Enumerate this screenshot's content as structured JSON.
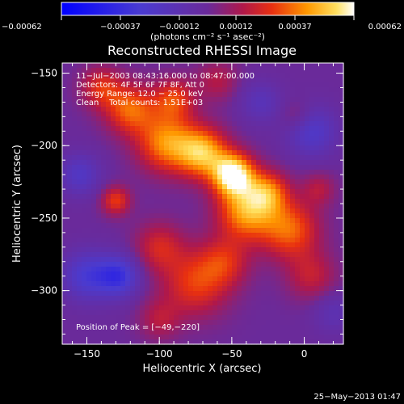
{
  "chart_data": {
    "type": "heatmap",
    "title": "Reconstructed RHESSI Image",
    "xlabel": "Heliocentric X (arcsec)",
    "ylabel": "Heliocentric Y (arcsec)",
    "xlim": [
      -167,
      27
    ],
    "ylim": [
      -337,
      -143
    ],
    "x_ticks": [
      -150,
      -100,
      -50,
      0
    ],
    "x_tick_labels": [
      "−150",
      "−100",
      "−50",
      "0"
    ],
    "y_ticks": [
      -150,
      -200,
      -250,
      -300
    ],
    "y_tick_labels": [
      "−150",
      "−200",
      "−250",
      "−300"
    ],
    "colorbar": {
      "range": [
        -0.00062,
        0.00062
      ],
      "tick_values": [
        -0.00062,
        -0.00037,
        -0.00012,
        0.00012,
        0.00037,
        0.00062
      ],
      "tick_labels": [
        "−0.00062",
        "−0.00037",
        "−0.00012",
        "0.00012",
        "0.00037",
        "0.00062"
      ],
      "units_label": "(photons cm⁻² s⁻¹ asec⁻²)"
    },
    "annotations": [
      "11−Jul−2003 08:43:16.000 to 08:47:00.000",
      "Detectors: 4F 5F 6F 7F 8F, Att 0",
      "Energy Range: 12.0 − 25.0 keV",
      "Clean    Total counts: 1.51E+03"
    ],
    "peak_label": "Position of Peak = [−49,−220]",
    "peak_position": [
      -49,
      -220
    ],
    "footer_date": "25−May−2013 01:47",
    "blobs": [
      {
        "x": -49,
        "y": -220,
        "amp": 1.0,
        "sigma": 10
      },
      {
        "x": -70,
        "y": -205,
        "amp": 0.75,
        "sigma": 12
      },
      {
        "x": -95,
        "y": -198,
        "amp": 0.65,
        "sigma": 14
      },
      {
        "x": -120,
        "y": -175,
        "amp": 0.55,
        "sigma": 12
      },
      {
        "x": -40,
        "y": -245,
        "amp": 0.7,
        "sigma": 14
      },
      {
        "x": -10,
        "y": -258,
        "amp": 0.55,
        "sigma": 14
      },
      {
        "x": -25,
        "y": -232,
        "amp": 0.5,
        "sigma": 10
      },
      {
        "x": -140,
        "y": -160,
        "amp": 0.4,
        "sigma": 10
      },
      {
        "x": -90,
        "y": -168,
        "amp": 0.45,
        "sigma": 10
      },
      {
        "x": -75,
        "y": -295,
        "amp": 0.45,
        "sigma": 16
      },
      {
        "x": -100,
        "y": -270,
        "amp": 0.35,
        "sigma": 12
      },
      {
        "x": -55,
        "y": -280,
        "amp": 0.35,
        "sigma": 12
      },
      {
        "x": 5,
        "y": -290,
        "amp": 0.3,
        "sigma": 12
      },
      {
        "x": -130,
        "y": -238,
        "amp": 0.45,
        "sigma": 7
      },
      {
        "x": -60,
        "y": -155,
        "amp": 0.25,
        "sigma": 10
      },
      {
        "x": -100,
        "y": -320,
        "amp": 0.25,
        "sigma": 10
      },
      {
        "x": -5,
        "y": -180,
        "amp": 0.2,
        "sigma": 8
      },
      {
        "x": 10,
        "y": -230,
        "amp": 0.25,
        "sigma": 8
      },
      {
        "x": -150,
        "y": -290,
        "amp": -0.45,
        "sigma": 12
      },
      {
        "x": -128,
        "y": -290,
        "amp": -0.55,
        "sigma": 10
      },
      {
        "x": -155,
        "y": -220,
        "amp": -0.35,
        "sigma": 10
      },
      {
        "x": 5,
        "y": -190,
        "amp": -0.4,
        "sigma": 12
      },
      {
        "x": -30,
        "y": -170,
        "amp": -0.25,
        "sigma": 10
      },
      {
        "x": 20,
        "y": -315,
        "amp": -0.2,
        "sigma": 10
      }
    ]
  }
}
